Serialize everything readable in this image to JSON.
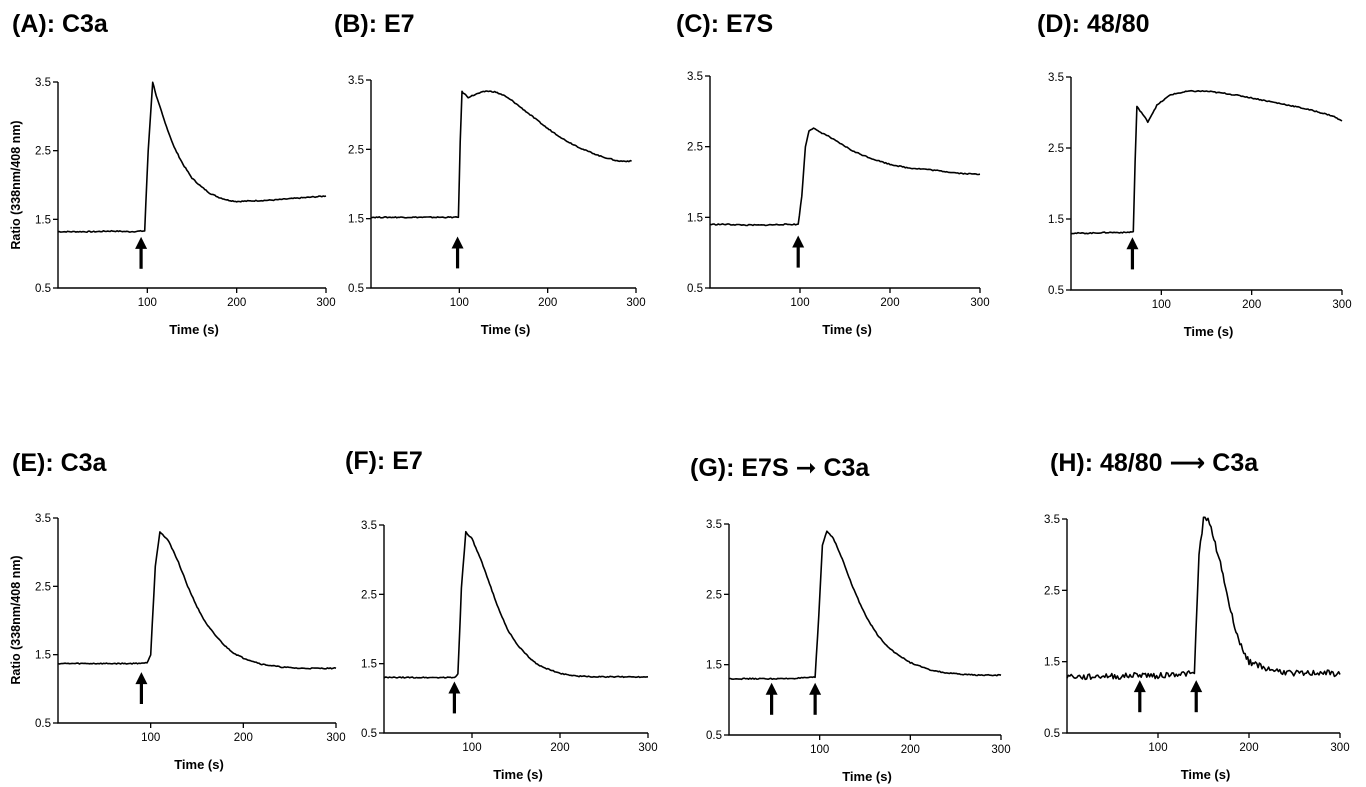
{
  "figure": {
    "panels": [
      {
        "title": "(A): C3a",
        "ylabel": "Ratio (338nm/408 nm)"
      },
      {
        "title": "(B): E7",
        "ylabel": ""
      },
      {
        "title": "(C): E7S",
        "ylabel": ""
      },
      {
        "title": "(D): 48/80",
        "ylabel": ""
      },
      {
        "title": "(E): C3a",
        "ylabel": "Ratio (338nm/408 nm)"
      },
      {
        "title": "(F): E7",
        "ylabel": ""
      },
      {
        "title": "(G): E7S ➞ C3a",
        "ylabel": ""
      },
      {
        "title": "(H):  48/80 ⟶ C3a",
        "ylabel": ""
      }
    ]
  },
  "chart_data": [
    {
      "type": "line",
      "title": "(A): C3a",
      "xlabel": "Time (s)",
      "ylabel": "Ratio (338nm/408 nm)",
      "xlim": [
        0,
        300
      ],
      "ylim": [
        0.5,
        3.5
      ],
      "xticks": [
        "100",
        "200",
        "300"
      ],
      "yticks": [
        "0.5",
        "1.5",
        "2.5",
        "3.5"
      ],
      "arrows_at_time": [
        93
      ],
      "series": [
        {
          "x": [
            0,
            20,
            40,
            60,
            80,
            97,
            101,
            106,
            110,
            120,
            130,
            140,
            150,
            160,
            170,
            180,
            190,
            200,
            220,
            240,
            260,
            280,
            300
          ],
          "y": [
            1.32,
            1.32,
            1.32,
            1.33,
            1.32,
            1.33,
            2.5,
            3.5,
            3.3,
            2.9,
            2.55,
            2.3,
            2.1,
            1.98,
            1.88,
            1.82,
            1.78,
            1.76,
            1.77,
            1.78,
            1.8,
            1.82,
            1.84
          ]
        }
      ]
    },
    {
      "type": "line",
      "title": "(B): E7",
      "xlabel": "Time (s)",
      "ylabel": "",
      "xlim": [
        0,
        300
      ],
      "ylim": [
        0.5,
        3.5
      ],
      "xticks": [
        "100",
        "200",
        "300"
      ],
      "yticks": [
        "0.5",
        "1.5",
        "2.5",
        "3.5"
      ],
      "arrows_at_time": [
        98
      ],
      "series": [
        {
          "x": [
            0,
            20,
            40,
            60,
            80,
            99,
            101,
            103,
            110,
            120,
            130,
            140,
            150,
            160,
            180,
            200,
            220,
            240,
            260,
            280,
            295
          ],
          "y": [
            1.52,
            1.52,
            1.52,
            1.52,
            1.52,
            1.52,
            2.6,
            3.33,
            3.25,
            3.3,
            3.34,
            3.33,
            3.28,
            3.2,
            3.0,
            2.8,
            2.63,
            2.5,
            2.4,
            2.33,
            2.33
          ]
        }
      ]
    },
    {
      "type": "line",
      "title": "(C): E7S",
      "xlabel": "Time (s)",
      "ylabel": "",
      "xlim": [
        0,
        300
      ],
      "ylim": [
        0.5,
        3.5
      ],
      "xticks": [
        "100",
        "200",
        "300"
      ],
      "yticks": [
        "0.5",
        "1.5",
        "2.5",
        "3.5"
      ],
      "arrows_at_time": [
        98
      ],
      "series": [
        {
          "x": [
            0,
            20,
            40,
            60,
            80,
            98,
            102,
            106,
            110,
            115,
            120,
            130,
            140,
            160,
            180,
            200,
            220,
            240,
            260,
            280,
            300
          ],
          "y": [
            1.4,
            1.4,
            1.39,
            1.39,
            1.4,
            1.4,
            1.8,
            2.5,
            2.73,
            2.76,
            2.72,
            2.66,
            2.58,
            2.43,
            2.33,
            2.25,
            2.2,
            2.18,
            2.15,
            2.12,
            2.11
          ]
        }
      ]
    },
    {
      "type": "line",
      "title": "(D): 48/80",
      "xlabel": "Time (s)",
      "ylabel": "",
      "xlim": [
        0,
        300
      ],
      "ylim": [
        0.5,
        3.5
      ],
      "xticks": [
        "100",
        "200",
        "300"
      ],
      "yticks": [
        "0.5",
        "1.5",
        "2.5",
        "3.5"
      ],
      "arrows_at_time": [
        68
      ],
      "series": [
        {
          "x": [
            0,
            20,
            40,
            60,
            69,
            71,
            73,
            78,
            85,
            95,
            110,
            130,
            150,
            170,
            190,
            210,
            230,
            250,
            270,
            290,
            300
          ],
          "y": [
            1.3,
            1.3,
            1.31,
            1.31,
            1.32,
            2.3,
            3.08,
            3.0,
            2.87,
            3.1,
            3.25,
            3.3,
            3.3,
            3.27,
            3.23,
            3.18,
            3.13,
            3.08,
            3.02,
            2.95,
            2.88
          ]
        }
      ]
    },
    {
      "type": "line",
      "title": "(E): C3a",
      "xlabel": "Time (s)",
      "ylabel": "Ratio (338nm/408 nm)",
      "xlim": [
        0,
        300
      ],
      "ylim": [
        0.5,
        3.5
      ],
      "xticks": [
        "100",
        "200",
        "300"
      ],
      "yticks": [
        "0.5",
        "1.5",
        "2.5",
        "3.5"
      ],
      "arrows_at_time": [
        90
      ],
      "series": [
        {
          "x": [
            0,
            20,
            40,
            60,
            80,
            96,
            100,
            105,
            110,
            120,
            130,
            140,
            150,
            160,
            170,
            180,
            190,
            200,
            220,
            240,
            260,
            280,
            300
          ],
          "y": [
            1.37,
            1.37,
            1.37,
            1.37,
            1.37,
            1.38,
            1.5,
            2.8,
            3.3,
            3.15,
            2.85,
            2.5,
            2.2,
            1.95,
            1.78,
            1.63,
            1.52,
            1.45,
            1.36,
            1.32,
            1.3,
            1.3,
            1.3
          ]
        }
      ]
    },
    {
      "type": "line",
      "title": "(F): E7",
      "xlabel": "Time (s)",
      "ylabel": "",
      "xlim": [
        0,
        300
      ],
      "ylim": [
        0.5,
        3.5
      ],
      "xticks": [
        "100",
        "200",
        "300"
      ],
      "yticks": [
        "0.5",
        "1.5",
        "2.5",
        "3.5"
      ],
      "arrows_at_time": [
        80
      ],
      "series": [
        {
          "x": [
            0,
            20,
            40,
            60,
            80,
            84,
            88,
            93,
            100,
            110,
            120,
            130,
            140,
            150,
            160,
            170,
            180,
            200,
            220,
            240,
            260,
            280,
            300
          ],
          "y": [
            1.3,
            1.3,
            1.3,
            1.3,
            1.3,
            1.35,
            2.6,
            3.4,
            3.3,
            3.0,
            2.65,
            2.3,
            2.0,
            1.8,
            1.65,
            1.53,
            1.45,
            1.36,
            1.32,
            1.31,
            1.31,
            1.31,
            1.31
          ]
        }
      ]
    },
    {
      "type": "line",
      "title": "(G): E7S ➞ C3a",
      "xlabel": "Time (s)",
      "ylabel": "",
      "xlim": [
        0,
        300
      ],
      "ylim": [
        0.5,
        3.5
      ],
      "xticks": [
        "100",
        "200",
        "300"
      ],
      "yticks": [
        "0.5",
        "1.5",
        "2.5",
        "3.5"
      ],
      "arrows_at_time": [
        47,
        95
      ],
      "series": [
        {
          "x": [
            0,
            20,
            40,
            60,
            80,
            95,
            99,
            103,
            108,
            115,
            125,
            135,
            145,
            155,
            165,
            175,
            185,
            200,
            220,
            240,
            260,
            280,
            300
          ],
          "y": [
            1.3,
            1.3,
            1.3,
            1.3,
            1.31,
            1.32,
            2.2,
            3.2,
            3.4,
            3.3,
            3.0,
            2.65,
            2.35,
            2.1,
            1.9,
            1.76,
            1.65,
            1.53,
            1.43,
            1.38,
            1.36,
            1.35,
            1.35
          ]
        }
      ]
    },
    {
      "type": "line",
      "title": "(H):  48/80 ⟶ C3a",
      "xlabel": "Time (s)",
      "ylabel": "",
      "xlim": [
        0,
        300
      ],
      "ylim": [
        0.5,
        3.5
      ],
      "xticks": [
        "100",
        "200",
        "300"
      ],
      "yticks": [
        "0.5",
        "1.5",
        "2.5",
        "3.5"
      ],
      "arrows_at_time": [
        80,
        142
      ],
      "series": [
        {
          "x": [
            0,
            20,
            40,
            60,
            80,
            100,
            120,
            140,
            145,
            150,
            155,
            160,
            170,
            180,
            190,
            200,
            210,
            220,
            240,
            260,
            280,
            300
          ],
          "y": [
            1.3,
            1.28,
            1.3,
            1.29,
            1.32,
            1.3,
            1.33,
            1.33,
            3.0,
            3.5,
            3.48,
            3.3,
            2.8,
            2.2,
            1.75,
            1.5,
            1.45,
            1.4,
            1.35,
            1.33,
            1.35,
            1.32
          ]
        }
      ]
    }
  ]
}
